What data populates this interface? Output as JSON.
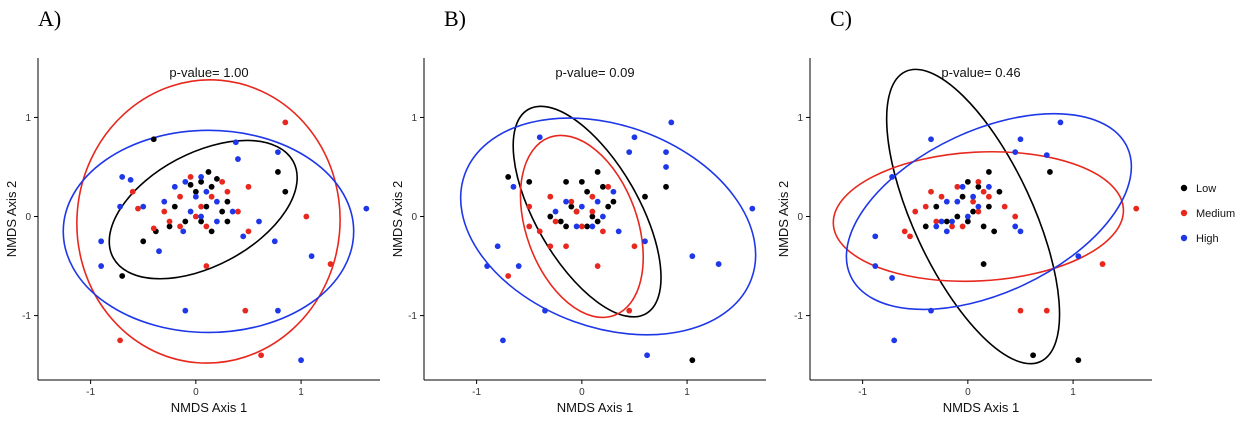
{
  "chart_data": [
    {
      "panel": "A)",
      "type": "scatter",
      "title": "p-value= 1.00",
      "xlabel": "NMDS Axis 1",
      "ylabel": "NMDS Axis 2",
      "xlim": [
        -1.5,
        1.75
      ],
      "ylim": [
        -1.65,
        1.6
      ],
      "xticks": [
        -1,
        0,
        1
      ],
      "yticks": [
        -1,
        0,
        1
      ],
      "grid": false,
      "series": [
        {
          "name": "Low",
          "color": "#000000",
          "ellipse": {
            "cx": 0.07,
            "cy": 0.07,
            "rx": 0.97,
            "ry": 0.57,
            "angle": 28
          },
          "points": [
            [
              -0.4,
              0.78
            ],
            [
              0.05,
              0.35
            ],
            [
              0.12,
              0.45
            ],
            [
              0.15,
              0.3
            ],
            [
              0.2,
              0.38
            ],
            [
              -0.05,
              0.32
            ],
            [
              0.0,
              0.25
            ],
            [
              0.1,
              0.1
            ],
            [
              -0.2,
              0.1
            ],
            [
              0.25,
              0.05
            ],
            [
              0.3,
              0.15
            ],
            [
              -0.1,
              -0.05
            ],
            [
              0.05,
              -0.05
            ],
            [
              0.15,
              -0.15
            ],
            [
              -0.25,
              -0.1
            ],
            [
              -0.5,
              -0.25
            ],
            [
              -0.38,
              -0.15
            ],
            [
              0.78,
              0.45
            ],
            [
              0.85,
              0.25
            ],
            [
              -0.7,
              -0.6
            ],
            [
              0.3,
              -0.05
            ]
          ]
        },
        {
          "name": "Medium",
          "color": "#E8281E",
          "ellipse": {
            "cx": 0.12,
            "cy": -0.05,
            "rx": 1.25,
            "ry": 1.43,
            "angle": -5
          },
          "points": [
            [
              -0.15,
              0.2
            ],
            [
              0.05,
              0.1
            ],
            [
              0.15,
              0.2
            ],
            [
              -0.25,
              -0.05
            ],
            [
              -0.3,
              0.05
            ],
            [
              0.0,
              0.0
            ],
            [
              0.1,
              -0.1
            ],
            [
              -0.4,
              -0.12
            ],
            [
              0.4,
              0.05
            ],
            [
              -0.15,
              -0.1
            ],
            [
              0.25,
              0.35
            ],
            [
              -0.6,
              0.25
            ],
            [
              0.85,
              0.95
            ],
            [
              0.5,
              0.3
            ],
            [
              -0.55,
              0.08
            ],
            [
              -0.05,
              0.4
            ],
            [
              0.1,
              -0.5
            ],
            [
              0.47,
              -0.95
            ],
            [
              -0.72,
              -1.25
            ],
            [
              0.62,
              -1.4
            ],
            [
              1.28,
              -0.48
            ],
            [
              1.05,
              0.0
            ],
            [
              0.5,
              -0.15
            ],
            [
              0.3,
              0.25
            ]
          ]
        },
        {
          "name": "High",
          "color": "#1E37E8",
          "ellipse": {
            "cx": 0.12,
            "cy": -0.15,
            "rx": 1.38,
            "ry": 1.02,
            "angle": 0
          },
          "points": [
            [
              -0.1,
              0.35
            ],
            [
              0.0,
              0.2
            ],
            [
              -0.05,
              0.05
            ],
            [
              0.1,
              0.25
            ],
            [
              -0.2,
              0.3
            ],
            [
              0.2,
              0.15
            ],
            [
              0.05,
              0.4
            ],
            [
              -0.12,
              -0.15
            ],
            [
              -0.3,
              0.15
            ],
            [
              0.2,
              -0.05
            ],
            [
              0.35,
              0.05
            ],
            [
              -0.5,
              0.1
            ],
            [
              -0.72,
              0.1
            ],
            [
              -0.7,
              0.4
            ],
            [
              0.4,
              0.58
            ],
            [
              0.38,
              0.75
            ],
            [
              0.78,
              0.65
            ],
            [
              0.6,
              -0.05
            ],
            [
              0.75,
              -0.25
            ],
            [
              -0.9,
              -0.25
            ],
            [
              -0.9,
              -0.5
            ],
            [
              -0.1,
              -0.95
            ],
            [
              0.78,
              -0.95
            ],
            [
              1.0,
              -1.45
            ],
            [
              1.1,
              -0.4
            ],
            [
              1.62,
              0.08
            ],
            [
              0.45,
              -0.2
            ],
            [
              -0.35,
              -0.35
            ],
            [
              -0.62,
              0.37
            ],
            [
              0.05,
              0.0
            ]
          ]
        }
      ]
    },
    {
      "panel": "B)",
      "type": "scatter",
      "title": "p-value= 0.09",
      "xlabel": "NMDS Axis 1",
      "ylabel": "NMDS Axis 2",
      "xlim": [
        -1.5,
        1.75
      ],
      "ylim": [
        -1.65,
        1.6
      ],
      "xticks": [
        -1,
        0,
        1
      ],
      "yticks": [
        -1,
        0,
        1
      ],
      "grid": false,
      "series": [
        {
          "name": "Low",
          "color": "#000000",
          "ellipse": {
            "cx": 0.05,
            "cy": 0.05,
            "rx": 1.12,
            "ry": 0.52,
            "angle": -60
          },
          "points": [
            [
              -0.7,
              0.4
            ],
            [
              -0.5,
              0.35
            ],
            [
              -0.15,
              0.35
            ],
            [
              0.05,
              0.25
            ],
            [
              0.15,
              0.45
            ],
            [
              0.2,
              0.3
            ],
            [
              0.0,
              0.35
            ],
            [
              -0.1,
              0.1
            ],
            [
              0.1,
              0.0
            ],
            [
              -0.2,
              -0.05
            ],
            [
              0.3,
              0.15
            ],
            [
              -0.3,
              0.0
            ],
            [
              0.05,
              -0.1
            ],
            [
              -0.15,
              -0.1
            ],
            [
              0.15,
              -0.05
            ],
            [
              0.6,
              0.2
            ],
            [
              0.8,
              0.3
            ],
            [
              1.05,
              -1.45
            ],
            [
              -0.05,
              0.05
            ],
            [
              0.25,
              0.1
            ]
          ]
        },
        {
          "name": "Medium",
          "color": "#E8281E",
          "ellipse": {
            "cx": 0.0,
            "cy": -0.1,
            "rx": 0.9,
            "ry": 0.56,
            "angle": -70
          },
          "points": [
            [
              -0.3,
              0.2
            ],
            [
              -0.1,
              0.15
            ],
            [
              0.1,
              0.2
            ],
            [
              -0.05,
              0.05
            ],
            [
              -0.25,
              -0.05
            ],
            [
              0.0,
              -0.1
            ],
            [
              -0.4,
              -0.15
            ],
            [
              -0.5,
              -0.1
            ],
            [
              -0.3,
              -0.3
            ],
            [
              -0.15,
              -0.3
            ],
            [
              0.2,
              -0.15
            ],
            [
              0.1,
              0.05
            ],
            [
              0.5,
              -0.3
            ],
            [
              0.15,
              -0.5
            ],
            [
              0.45,
              -0.95
            ],
            [
              -0.7,
              -0.6
            ],
            [
              -0.5,
              0.1
            ],
            [
              0.25,
              0.3
            ]
          ]
        },
        {
          "name": "High",
          "color": "#1E37E8",
          "ellipse": {
            "cx": 0.25,
            "cy": -0.1,
            "rx": 1.45,
            "ry": 1.02,
            "angle": -20
          },
          "points": [
            [
              -0.4,
              0.8
            ],
            [
              0.3,
              0.25
            ],
            [
              0.0,
              0.1
            ],
            [
              -0.15,
              0.15
            ],
            [
              0.2,
              0.0
            ],
            [
              -0.25,
              0.05
            ],
            [
              0.1,
              -0.1
            ],
            [
              -0.05,
              -0.1
            ],
            [
              0.15,
              0.15
            ],
            [
              0.45,
              0.65
            ],
            [
              0.5,
              0.8
            ],
            [
              0.8,
              0.65
            ],
            [
              0.8,
              0.5
            ],
            [
              0.85,
              0.95
            ],
            [
              0.35,
              -0.15
            ],
            [
              -0.8,
              -0.3
            ],
            [
              -0.9,
              -0.5
            ],
            [
              -0.6,
              -0.5
            ],
            [
              -0.75,
              -1.25
            ],
            [
              -0.35,
              -0.95
            ],
            [
              0.62,
              -1.4
            ],
            [
              1.05,
              -0.4
            ],
            [
              1.3,
              -0.48
            ],
            [
              1.62,
              0.08
            ],
            [
              0.6,
              -0.25
            ],
            [
              -0.65,
              0.3
            ]
          ]
        }
      ]
    },
    {
      "panel": "C)",
      "type": "scatter",
      "title": "p-value= 0.46",
      "xlabel": "NMDS Axis 1",
      "ylabel": "NMDS Axis 2",
      "xlim": [
        -1.5,
        1.75
      ],
      "ylim": [
        -1.65,
        1.6
      ],
      "xticks": [
        -1,
        0,
        1
      ],
      "yticks": [
        -1,
        0,
        1
      ],
      "grid": false,
      "series": [
        {
          "name": "Low",
          "color": "#000000",
          "ellipse": {
            "cx": 0.05,
            "cy": 0.0,
            "rx": 1.52,
            "ry": 0.6,
            "angle": -65
          },
          "points": [
            [
              -0.3,
              0.1
            ],
            [
              0.0,
              0.35
            ],
            [
              0.1,
              0.3
            ],
            [
              0.2,
              0.45
            ],
            [
              0.3,
              0.25
            ],
            [
              -0.1,
              0.0
            ],
            [
              0.0,
              -0.05
            ],
            [
              0.05,
              0.05
            ],
            [
              -0.2,
              -0.05
            ],
            [
              0.15,
              -0.1
            ],
            [
              0.25,
              -0.15
            ],
            [
              0.2,
              0.1
            ],
            [
              -0.05,
              0.2
            ],
            [
              0.15,
              -0.48
            ],
            [
              0.78,
              0.45
            ],
            [
              0.62,
              -1.4
            ],
            [
              1.05,
              -1.45
            ],
            [
              -0.4,
              -0.1
            ]
          ]
        },
        {
          "name": "Medium",
          "color": "#E8281E",
          "ellipse": {
            "cx": 0.1,
            "cy": 0.0,
            "rx": 1.38,
            "ry": 0.65,
            "angle": 3
          },
          "points": [
            [
              -0.4,
              0.1
            ],
            [
              -0.25,
              0.2
            ],
            [
              -0.1,
              0.3
            ],
            [
              0.05,
              0.15
            ],
            [
              0.15,
              0.25
            ],
            [
              -0.3,
              -0.05
            ],
            [
              -0.15,
              -0.1
            ],
            [
              0.1,
              0.05
            ],
            [
              -0.5,
              0.05
            ],
            [
              -0.6,
              -0.15
            ],
            [
              0.35,
              0.1
            ],
            [
              0.1,
              0.35
            ],
            [
              -0.55,
              -0.2
            ],
            [
              -0.35,
              0.25
            ],
            [
              0.45,
              0.0
            ],
            [
              0.5,
              -0.95
            ],
            [
              0.75,
              -0.95
            ],
            [
              1.28,
              -0.48
            ],
            [
              1.6,
              0.08
            ],
            [
              -0.05,
              -0.1
            ],
            [
              0.2,
              0.2
            ]
          ]
        },
        {
          "name": "High",
          "color": "#1E37E8",
          "ellipse": {
            "cx": 0.2,
            "cy": 0.05,
            "rx": 1.45,
            "ry": 0.82,
            "angle": 25
          },
          "points": [
            [
              -0.35,
              0.78
            ],
            [
              -0.2,
              0.15
            ],
            [
              -0.05,
              0.3
            ],
            [
              0.05,
              0.2
            ],
            [
              0.1,
              0.1
            ],
            [
              -0.15,
              -0.05
            ],
            [
              -0.3,
              -0.1
            ],
            [
              -0.2,
              -0.15
            ],
            [
              0.2,
              0.3
            ],
            [
              0.0,
              0.0
            ],
            [
              -0.1,
              0.15
            ],
            [
              0.45,
              0.65
            ],
            [
              0.5,
              0.78
            ],
            [
              0.88,
              0.95
            ],
            [
              0.75,
              0.62
            ],
            [
              0.5,
              -0.15
            ],
            [
              -0.72,
              0.4
            ],
            [
              -0.88,
              -0.2
            ],
            [
              -0.88,
              -0.5
            ],
            [
              -0.72,
              -0.62
            ],
            [
              -0.7,
              -1.25
            ],
            [
              -0.35,
              -0.95
            ],
            [
              1.05,
              -0.4
            ],
            [
              0.45,
              -0.1
            ],
            [
              -0.25,
              -0.05
            ]
          ]
        }
      ]
    }
  ],
  "legend": {
    "position": "right",
    "items": [
      {
        "label": "Low",
        "color": "#000000"
      },
      {
        "label": "Medium",
        "color": "#E8281E"
      },
      {
        "label": "High",
        "color": "#1E37E8"
      }
    ]
  }
}
